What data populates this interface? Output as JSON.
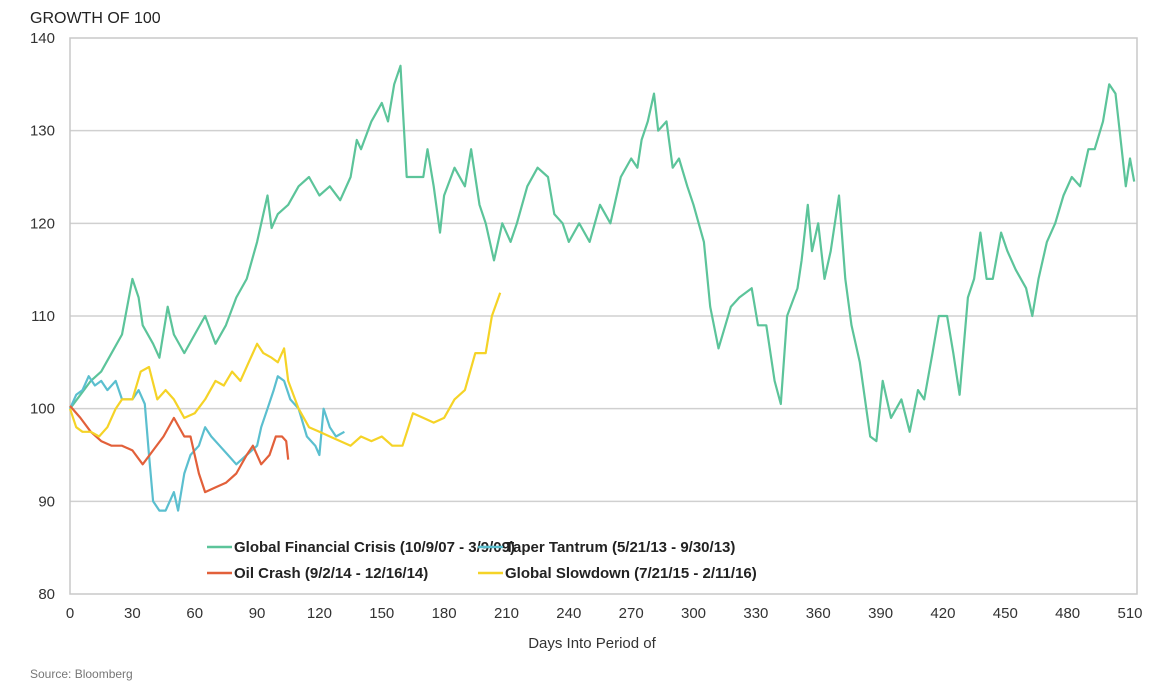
{
  "chart_data": {
    "type": "line",
    "title": "GROWTH OF 100",
    "xlabel": "Days Into Period of",
    "ylabel": "",
    "source": "Source: Bloomberg",
    "xlim": [
      0,
      515
    ],
    "ylim": [
      80,
      140
    ],
    "xticks": [
      0,
      30,
      60,
      90,
      120,
      150,
      180,
      210,
      240,
      270,
      300,
      330,
      360,
      390,
      420,
      450,
      480,
      510
    ],
    "yticks": [
      80,
      90,
      100,
      110,
      120,
      130,
      140
    ],
    "grid": "horizontal",
    "legend_position": "bottom-center",
    "series": [
      {
        "name": "Global Financial Crisis (10/9/07 - 3/9/09)",
        "color": "#5cc49a",
        "points": [
          [
            0,
            100
          ],
          [
            5,
            101.5
          ],
          [
            10,
            103
          ],
          [
            15,
            104
          ],
          [
            20,
            106
          ],
          [
            25,
            108
          ],
          [
            30,
            114
          ],
          [
            33,
            112
          ],
          [
            35,
            109
          ],
          [
            40,
            107
          ],
          [
            43,
            105.5
          ],
          [
            47,
            111
          ],
          [
            50,
            108
          ],
          [
            55,
            106
          ],
          [
            60,
            108
          ],
          [
            65,
            110
          ],
          [
            70,
            107
          ],
          [
            75,
            109
          ],
          [
            80,
            112
          ],
          [
            85,
            114
          ],
          [
            90,
            118
          ],
          [
            95,
            123
          ],
          [
            97,
            119.5
          ],
          [
            100,
            121
          ],
          [
            105,
            122
          ],
          [
            110,
            124
          ],
          [
            115,
            125
          ],
          [
            120,
            123
          ],
          [
            125,
            124
          ],
          [
            130,
            122.5
          ],
          [
            135,
            125
          ],
          [
            138,
            129
          ],
          [
            140,
            128
          ],
          [
            145,
            131
          ],
          [
            150,
            133
          ],
          [
            153,
            131
          ],
          [
            156,
            135
          ],
          [
            159,
            137
          ],
          [
            160,
            133
          ],
          [
            162,
            125
          ],
          [
            170,
            125
          ],
          [
            172,
            128
          ],
          [
            175,
            124
          ],
          [
            178,
            119
          ],
          [
            180,
            123
          ],
          [
            185,
            126
          ],
          [
            190,
            124
          ],
          [
            193,
            128
          ],
          [
            197,
            122
          ],
          [
            200,
            120
          ],
          [
            204,
            116
          ],
          [
            208,
            120
          ],
          [
            212,
            118
          ],
          [
            215,
            120
          ],
          [
            220,
            124
          ],
          [
            225,
            126
          ],
          [
            230,
            125
          ],
          [
            233,
            121
          ],
          [
            237,
            120
          ],
          [
            240,
            118
          ],
          [
            245,
            120
          ],
          [
            250,
            118
          ],
          [
            255,
            122
          ],
          [
            260,
            120
          ],
          [
            265,
            125
          ],
          [
            270,
            127
          ],
          [
            273,
            126
          ],
          [
            275,
            129
          ],
          [
            278,
            131
          ],
          [
            281,
            134
          ],
          [
            283,
            130
          ],
          [
            287,
            131
          ],
          [
            290,
            126
          ],
          [
            293,
            127
          ],
          [
            297,
            124
          ],
          [
            300,
            122
          ],
          [
            305,
            118
          ],
          [
            308,
            111
          ],
          [
            312,
            106.5
          ],
          [
            318,
            111
          ],
          [
            322,
            112
          ],
          [
            328,
            113
          ],
          [
            331,
            109
          ],
          [
            335,
            109
          ],
          [
            339,
            103
          ],
          [
            342,
            100.5
          ],
          [
            345,
            110
          ],
          [
            350,
            113
          ],
          [
            352,
            116
          ],
          [
            355,
            122
          ],
          [
            357,
            117
          ],
          [
            360,
            120
          ],
          [
            363,
            114
          ],
          [
            366,
            117
          ],
          [
            370,
            123
          ],
          [
            373,
            114
          ],
          [
            376,
            109
          ],
          [
            380,
            105
          ],
          [
            385,
            97
          ],
          [
            388,
            96.5
          ],
          [
            391,
            103
          ],
          [
            395,
            99
          ],
          [
            400,
            101
          ],
          [
            404,
            97.5
          ],
          [
            408,
            102
          ],
          [
            411,
            101
          ],
          [
            415,
            106
          ],
          [
            418,
            110
          ],
          [
            422,
            110
          ],
          [
            425,
            106
          ],
          [
            428,
            101.5
          ],
          [
            432,
            112
          ],
          [
            435,
            114
          ],
          [
            438,
            119
          ],
          [
            441,
            114
          ],
          [
            444,
            114
          ],
          [
            448,
            119
          ],
          [
            451,
            117
          ],
          [
            455,
            115
          ],
          [
            460,
            113
          ],
          [
            463,
            110
          ],
          [
            466,
            114
          ],
          [
            470,
            118
          ],
          [
            474,
            120
          ],
          [
            478,
            123
          ],
          [
            482,
            125
          ],
          [
            486,
            124
          ],
          [
            490,
            128
          ],
          [
            493,
            128
          ],
          [
            497,
            131
          ],
          [
            500,
            135
          ],
          [
            503,
            134
          ],
          [
            506,
            128
          ],
          [
            508,
            124
          ],
          [
            510,
            127
          ],
          [
            512,
            124.5
          ]
        ]
      },
      {
        "name": "Taper Tantrum (5/21/13 - 9/30/13)",
        "color": "#5bbfcf",
        "points": [
          [
            0,
            100
          ],
          [
            3,
            101.5
          ],
          [
            6,
            102
          ],
          [
            9,
            103.5
          ],
          [
            12,
            102.5
          ],
          [
            15,
            103
          ],
          [
            18,
            102
          ],
          [
            22,
            103
          ],
          [
            25,
            101
          ],
          [
            30,
            101
          ],
          [
            33,
            102
          ],
          [
            36,
            100.5
          ],
          [
            38,
            95
          ],
          [
            40,
            90
          ],
          [
            43,
            89
          ],
          [
            46,
            89
          ],
          [
            50,
            91
          ],
          [
            52,
            89
          ],
          [
            55,
            93
          ],
          [
            58,
            95
          ],
          [
            62,
            96
          ],
          [
            65,
            98
          ],
          [
            68,
            97
          ],
          [
            72,
            96
          ],
          [
            76,
            95
          ],
          [
            80,
            94
          ],
          [
            85,
            95
          ],
          [
            90,
            96
          ],
          [
            92,
            98
          ],
          [
            95,
            100
          ],
          [
            98,
            102
          ],
          [
            100,
            103.5
          ],
          [
            103,
            103
          ],
          [
            106,
            101
          ],
          [
            110,
            100
          ],
          [
            114,
            97
          ],
          [
            118,
            96
          ],
          [
            120,
            95
          ],
          [
            122,
            100
          ],
          [
            125,
            98
          ],
          [
            128,
            97
          ],
          [
            132,
            97.5
          ]
        ]
      },
      {
        "name": "Oil Crash (9/2/14 - 12/16/14)",
        "color": "#e2603a",
        "points": [
          [
            0,
            100.3
          ],
          [
            5,
            99
          ],
          [
            10,
            97.5
          ],
          [
            15,
            96.5
          ],
          [
            20,
            96
          ],
          [
            25,
            96
          ],
          [
            30,
            95.5
          ],
          [
            35,
            94
          ],
          [
            40,
            95.5
          ],
          [
            45,
            97
          ],
          [
            50,
            99
          ],
          [
            55,
            97
          ],
          [
            58,
            97
          ],
          [
            62,
            93
          ],
          [
            65,
            91
          ],
          [
            70,
            91.5
          ],
          [
            75,
            92
          ],
          [
            80,
            93
          ],
          [
            85,
            95
          ],
          [
            88,
            96
          ],
          [
            92,
            94
          ],
          [
            96,
            95
          ],
          [
            99,
            97
          ],
          [
            102,
            97
          ],
          [
            104,
            96.5
          ],
          [
            105,
            94.5
          ]
        ]
      },
      {
        "name": "Global Slowdown (7/21/15 - 2/11/16)",
        "color": "#f5d327",
        "points": [
          [
            0,
            100
          ],
          [
            3,
            98
          ],
          [
            6,
            97.5
          ],
          [
            10,
            97.5
          ],
          [
            14,
            97
          ],
          [
            18,
            98
          ],
          [
            22,
            100
          ],
          [
            25,
            101
          ],
          [
            30,
            101
          ],
          [
            34,
            104
          ],
          [
            38,
            104.5
          ],
          [
            42,
            101
          ],
          [
            46,
            102
          ],
          [
            50,
            101
          ],
          [
            55,
            99
          ],
          [
            60,
            99.5
          ],
          [
            65,
            101
          ],
          [
            70,
            103
          ],
          [
            74,
            102.5
          ],
          [
            78,
            104
          ],
          [
            82,
            103
          ],
          [
            86,
            105
          ],
          [
            90,
            107
          ],
          [
            93,
            106
          ],
          [
            97,
            105.5
          ],
          [
            100,
            105
          ],
          [
            103,
            106.5
          ],
          [
            105,
            103
          ],
          [
            110,
            100
          ],
          [
            115,
            98
          ],
          [
            120,
            97.5
          ],
          [
            125,
            97
          ],
          [
            130,
            96.5
          ],
          [
            135,
            96
          ],
          [
            140,
            97
          ],
          [
            145,
            96.5
          ],
          [
            150,
            97
          ],
          [
            155,
            96
          ],
          [
            160,
            96
          ],
          [
            165,
            99.5
          ],
          [
            170,
            99
          ],
          [
            175,
            98.5
          ],
          [
            180,
            99
          ],
          [
            185,
            101
          ],
          [
            190,
            102
          ],
          [
            195,
            106
          ],
          [
            200,
            106
          ],
          [
            203,
            110
          ],
          [
            207,
            112.5
          ]
        ]
      }
    ]
  }
}
